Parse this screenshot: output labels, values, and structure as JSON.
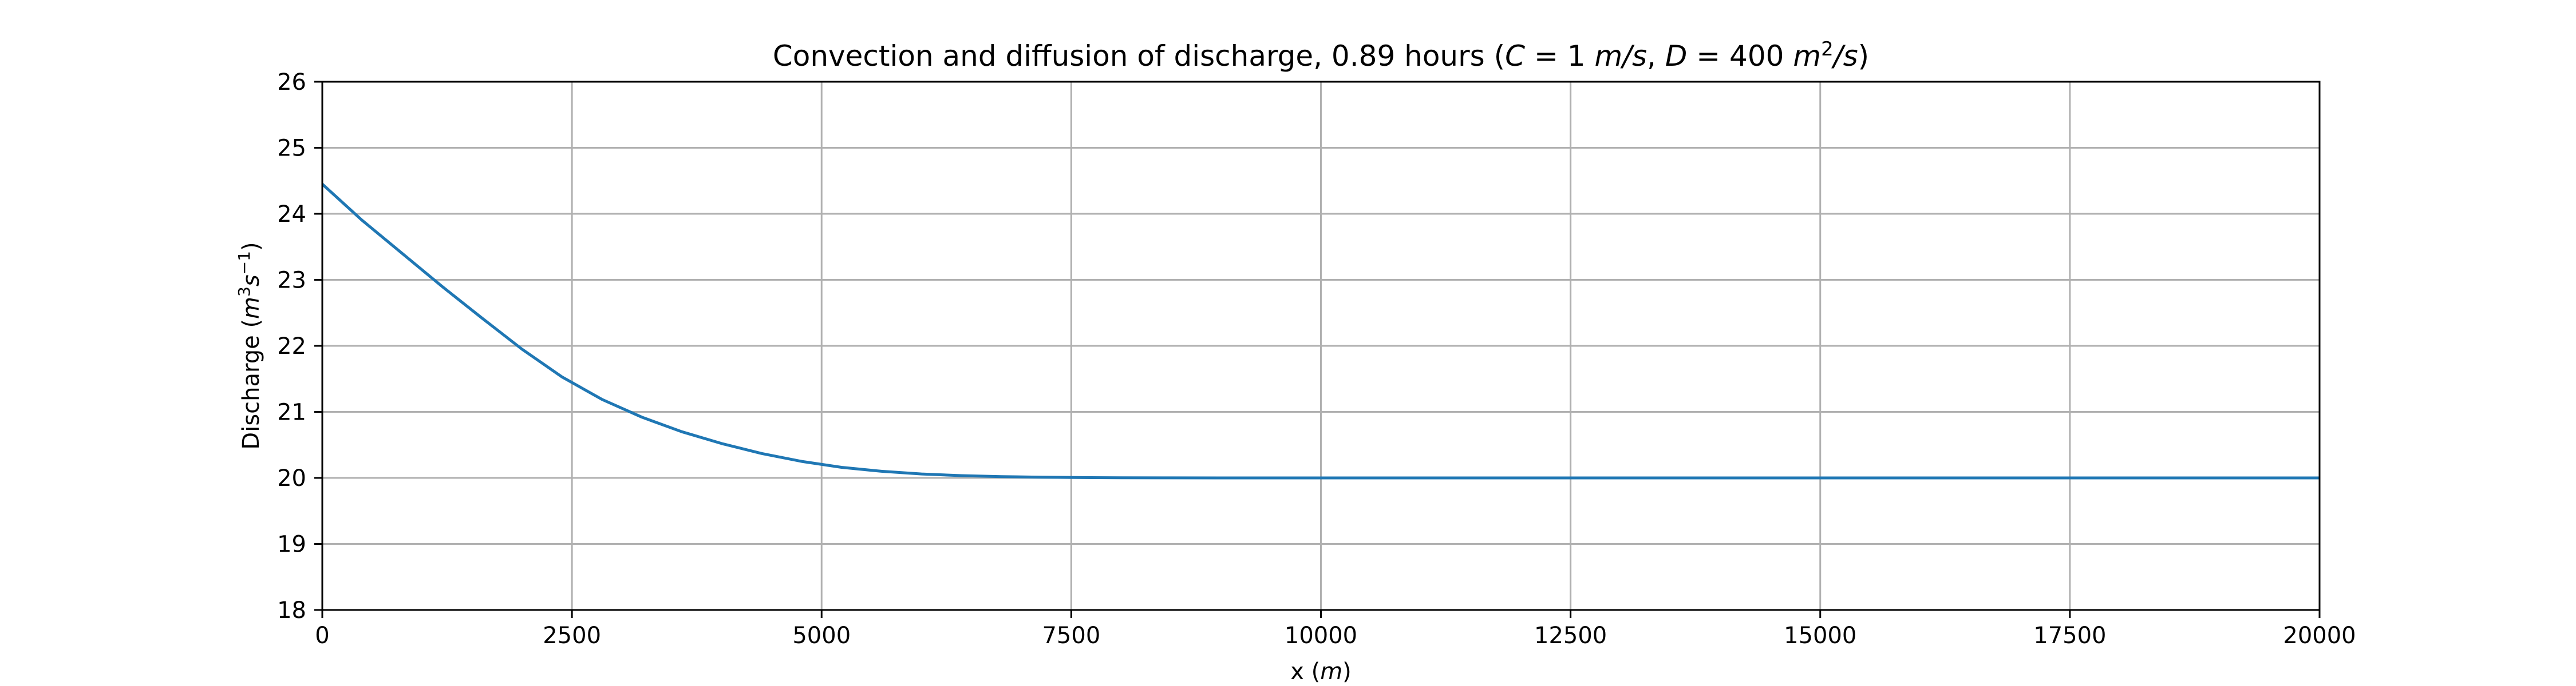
{
  "chart_data": {
    "type": "line",
    "title": {
      "prefix": "Convection and diffusion of discharge, 0.89 hours (",
      "c_var": "C",
      "c_eq": " = 1 ",
      "c_unit": "m/s",
      "sep": ", ",
      "d_var": "D",
      "d_eq": " = 400 ",
      "d_unit_m": "m",
      "d_unit_exp": "2",
      "d_unit_tail": "/s",
      "suffix": ")"
    },
    "xlabel": {
      "text": "x (",
      "unit": "m",
      "close": ")"
    },
    "ylabel": {
      "text": "Discharge (",
      "m": "m",
      "m_exp": "3",
      "s": "s",
      "s_exp": "−1",
      "close": ")"
    },
    "xlim": [
      0,
      20000
    ],
    "ylim": [
      18,
      26
    ],
    "xticks": [
      0,
      2500,
      5000,
      7500,
      10000,
      12500,
      15000,
      17500,
      20000
    ],
    "yticks": [
      18,
      19,
      20,
      21,
      22,
      23,
      24,
      25,
      26
    ],
    "grid": true,
    "line_color": "#1f77b4",
    "grid_color": "#b0b0b0",
    "series": [
      {
        "x": [
          0,
          400,
          800,
          1200,
          1600,
          2000,
          2400,
          2800,
          3200,
          3600,
          4000,
          4400,
          4800,
          5200,
          5600,
          6000,
          6400,
          6800,
          7200,
          7600,
          8000,
          8500,
          9000,
          10000,
          12000,
          14000,
          16000,
          18000,
          20000
        ],
        "y": [
          24.45,
          23.9,
          23.4,
          22.9,
          22.42,
          21.95,
          21.53,
          21.19,
          20.92,
          20.7,
          20.52,
          20.37,
          20.25,
          20.16,
          20.1,
          20.06,
          20.035,
          20.02,
          20.01,
          20.005,
          20.002,
          20.001,
          20.0,
          20.0,
          20.0,
          20.0,
          20.0,
          20.0,
          20.0
        ]
      }
    ]
  }
}
